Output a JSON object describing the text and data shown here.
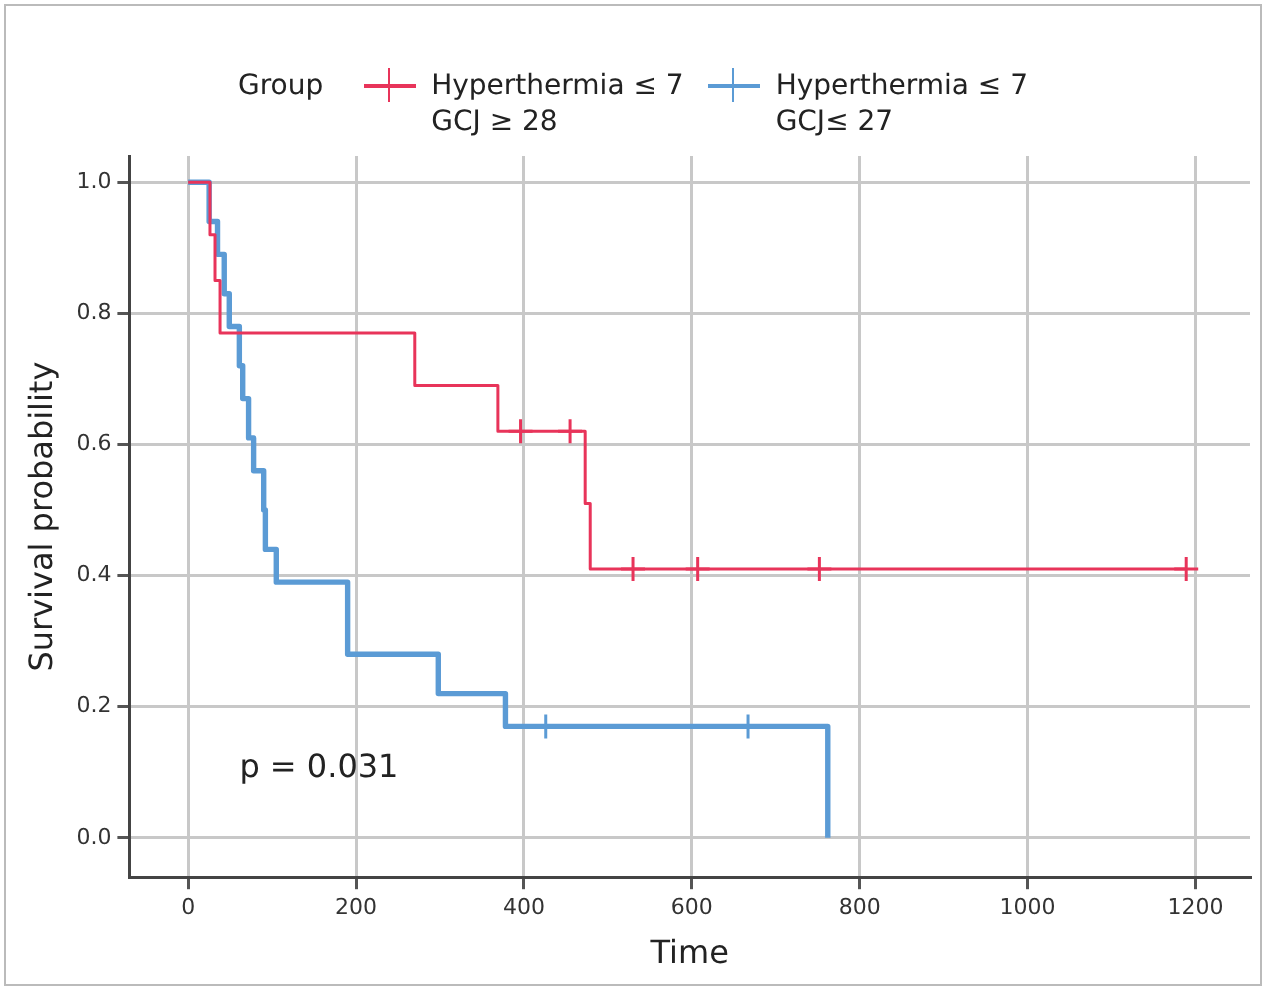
{
  "chart_data": {
    "type": "step",
    "xlabel": "Time",
    "ylabel": "Survival probability",
    "legend_title": "Group",
    "legend": "top",
    "grid": true,
    "line_style": "solid",
    "xlim": [
      -70,
      1265
    ],
    "xticks": [
      0,
      200,
      400,
      600,
      800,
      1000,
      1200
    ],
    "ylim": [
      -0.06,
      1.04
    ],
    "yticks": [
      {
        "value": 0,
        "label": "0.0"
      },
      {
        "value": 0.2,
        "label": "0.2"
      },
      {
        "value": 0.4,
        "label": "0.4"
      },
      {
        "value": 0.6,
        "label": "0.6"
      },
      {
        "value": 0.8,
        "label": "0.8"
      },
      {
        "value": 1,
        "label": "1.0"
      }
    ],
    "annotations": [
      "p = 0.031"
    ],
    "series": [
      {
        "name": "Hyperthermia ≤ 7\nGCJ ≥ 28",
        "color": "#e8345a",
        "x": [
          0,
          26,
          32,
          38,
          270,
          369,
          473,
          479,
          1189
        ],
        "values": [
          1,
          0.92,
          0.85,
          0.77,
          0.69,
          0.62,
          0.51,
          0.41,
          0.41
        ]
      },
      {
        "name": "Hyperthermia ≤ 7\nGCJ≤ 27",
        "color": "#5b9bd5",
        "x": [
          0,
          25,
          35,
          43,
          49,
          61,
          65,
          72,
          78,
          90,
          92,
          105,
          190,
          298,
          378,
          762
        ],
        "values": [
          1,
          0.94,
          0.89,
          0.83,
          0.78,
          0.72,
          0.67,
          0.61,
          0.56,
          0.5,
          0.44,
          0.39,
          0.28,
          0.22,
          0.17,
          0
        ]
      },
      {
        "type": "scatter",
        "marker": "cross",
        "color": "#e8345a",
        "x": [
          396,
          455,
          530,
          607,
          752,
          1189
        ],
        "values": [
          0.62,
          0.62,
          0.41,
          0.41,
          0.41,
          0.41
        ]
      },
      {
        "type": "scatter",
        "marker": "cross",
        "color": "#5b9bd5",
        "x": [
          426,
          667
        ],
        "values": [
          0.17,
          0.17
        ]
      }
    ]
  }
}
